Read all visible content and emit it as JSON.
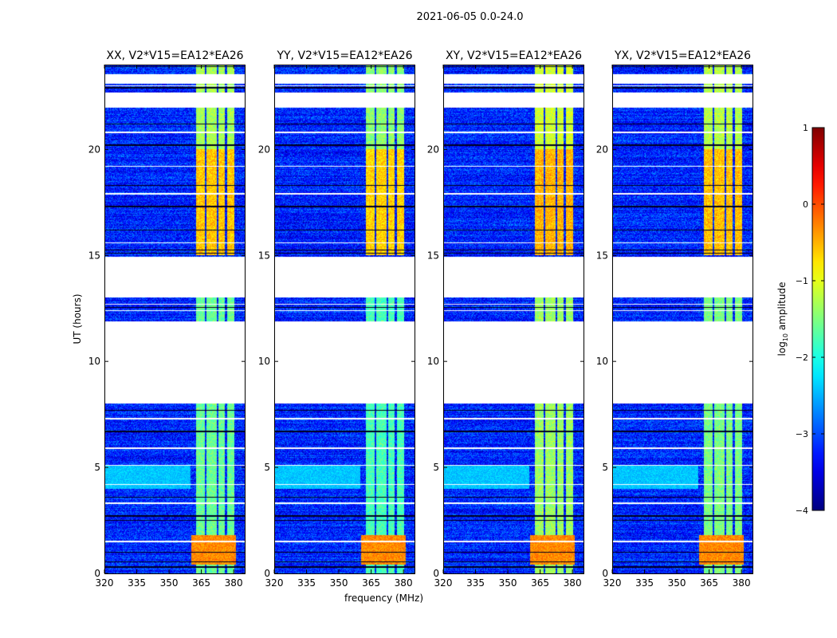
{
  "chart_data": {
    "type": "heatmap",
    "suptitle": "2021-06-05 0.0-24.0",
    "xlabel": "frequency (MHz)",
    "ylabel": "UT (hours)",
    "xlim": [
      320,
      385.5
    ],
    "ylim": [
      0,
      24
    ],
    "xticks": [
      320,
      335,
      350,
      365,
      380
    ],
    "yticks": [
      0,
      5,
      10,
      15,
      20
    ],
    "panels": [
      {
        "title": "XX, V2*V15=EA12*EA26",
        "strength": 1.0
      },
      {
        "title": "YY, V2*V15=EA12*EA26",
        "strength": 1.1
      },
      {
        "title": "XY, V2*V15=EA12*EA26",
        "strength": 0.85
      },
      {
        "title": "YX, V2*V15=EA12*EA26",
        "strength": 0.95
      }
    ],
    "colorbar": {
      "label_main": "log",
      "label_sub": "10",
      "label_tail": " amplitude",
      "range": [
        -4,
        1
      ],
      "ticks": [
        1,
        0,
        -1,
        -2,
        -3,
        -4
      ],
      "colormap": "jet"
    },
    "background_log_amplitude": -3.2,
    "flagged_ut_ranges": [
      [
        8.0,
        11.9
      ],
      [
        13.0,
        14.95
      ],
      [
        21.95,
        22.7
      ],
      [
        23.1,
        23.55
      ]
    ],
    "black_ut_lines": [
      0.3,
      0.55,
      1.0,
      2.5,
      2.7,
      3.6,
      6.7,
      7.7,
      12.55,
      15.1,
      15.25,
      16.2,
      17.3,
      18.3,
      20.2,
      21.2,
      22.9,
      23.9
    ],
    "white_ut_lines": [
      1.5,
      3.3,
      4.2,
      5.1,
      5.9,
      7.3,
      12.4,
      12.7,
      15.6,
      17.9,
      19.2,
      20.8,
      23.0
    ],
    "rfi_bands_mhz": [
      [
        362.5,
        366.5
      ],
      [
        367.5,
        372
      ],
      [
        373,
        376
      ],
      [
        377,
        380.5
      ]
    ],
    "rfi_levels": [
      {
        "ut": [
          0,
          8
        ],
        "log_amp": -1.6
      },
      {
        "ut": [
          11.9,
          13
        ],
        "log_amp": -1.6
      },
      {
        "ut": [
          15,
          20
        ],
        "log_amp": -0.6
      },
      {
        "ut": [
          20,
          24
        ],
        "log_amp": -1.3
      }
    ],
    "burst": {
      "ut": [
        0.4,
        1.8
      ],
      "freq": [
        360.5,
        381
      ],
      "log_amp": -0.3
    },
    "broadband_band": {
      "ut": [
        4.0,
        5.1
      ],
      "freq": [
        320,
        360
      ],
      "log_amp": -2.4
    }
  }
}
